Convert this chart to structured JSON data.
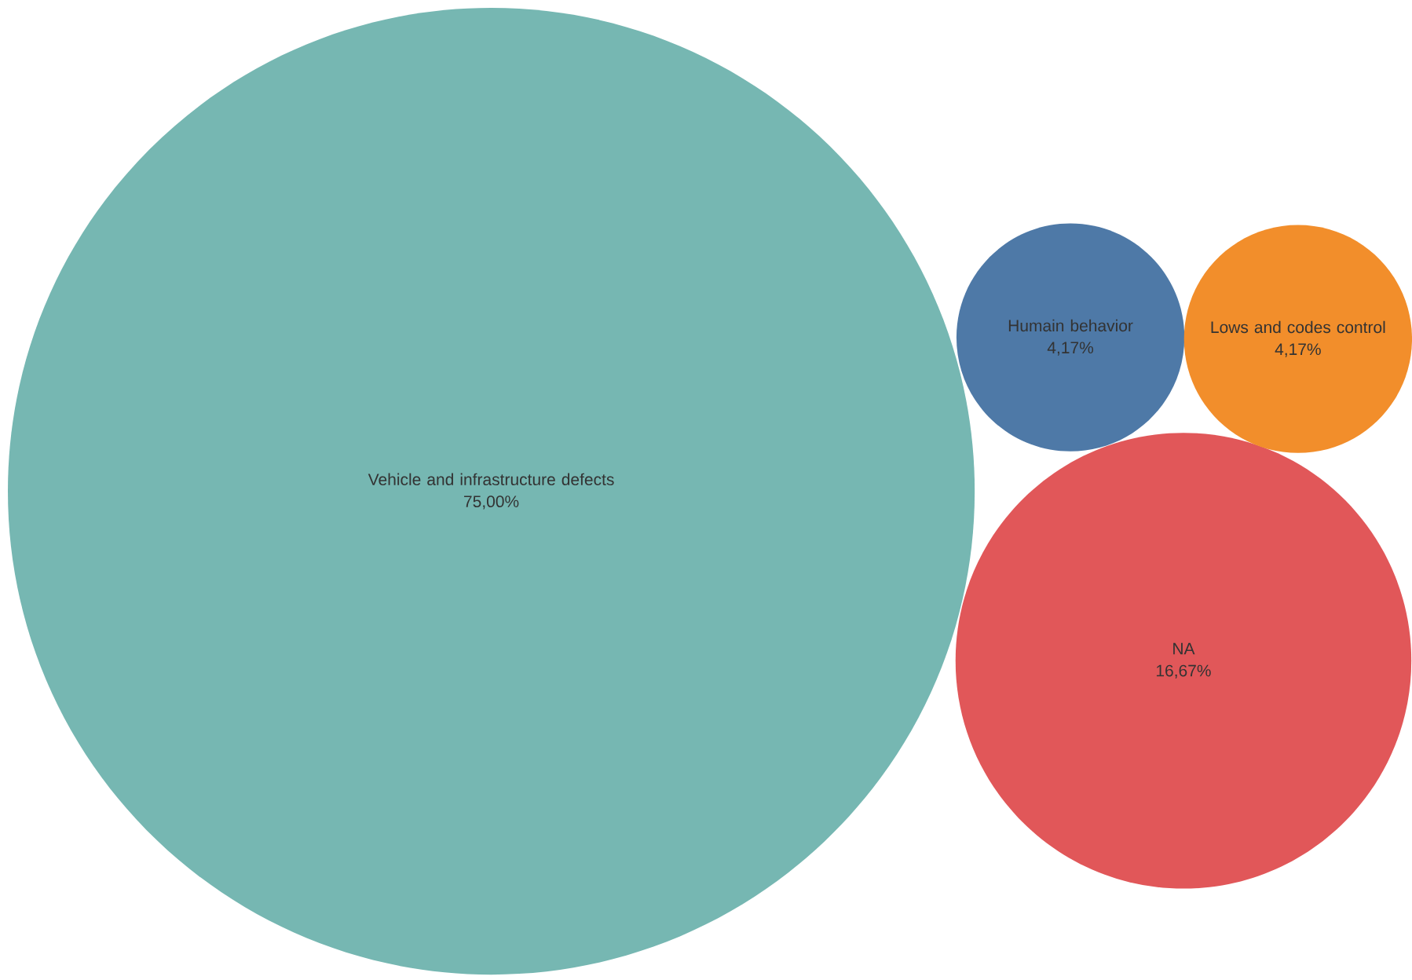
{
  "chart_data": {
    "type": "other",
    "categories": [
      "Vehicle and infrastructure defects",
      "NA",
      "Humain behavior",
      "Lows and codes control"
    ],
    "values": [
      75.0,
      16.67,
      4.17,
      4.17
    ],
    "colors": [
      "#76b7b2",
      "#e15759",
      "#4e79a7",
      "#f28e2b"
    ],
    "value_labels": [
      "75,00%",
      "16,67%",
      "4,17%",
      "4,17%"
    ]
  }
}
